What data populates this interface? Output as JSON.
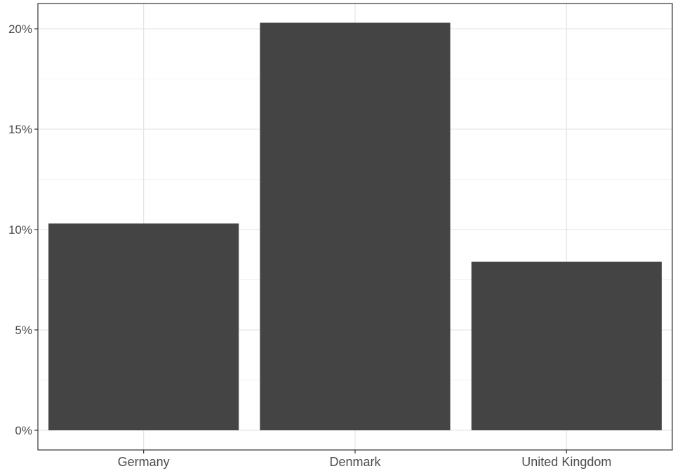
{
  "chart_data": {
    "type": "bar",
    "title": "",
    "xlabel": "",
    "ylabel": "",
    "categories": [
      "Germany",
      "Denmark",
      "United Kingdom"
    ],
    "values": [
      10.3,
      20.3,
      8.4
    ],
    "ylim": [
      0,
      21
    ],
    "y_ticks": [
      0,
      5,
      10,
      15,
      20
    ],
    "y_tick_labels": [
      "0%",
      "5%",
      "10%",
      "15%",
      "20%"
    ],
    "grid": true,
    "legend": "none",
    "colors": {
      "bar": "#444444",
      "grid_major": "#e6e6e6",
      "grid_minor": "#f2f2f2",
      "panel_border": "#333333",
      "tick_text": "#4d4d4d"
    }
  }
}
